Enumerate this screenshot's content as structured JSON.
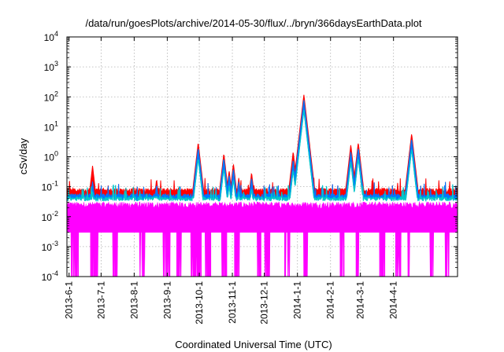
{
  "chart_data": {
    "type": "line",
    "title": "/data/run/goesPlots/archive/2014-05-30/flux/../bryn/366daysEarthData.plot",
    "xlabel": "Coordinated Universal Time (UTC)",
    "ylabel": "cSv/day",
    "yscale": "log",
    "ylim": [
      0.0001,
      10000
    ],
    "yticks": [
      {
        "value": 0.0001,
        "base": "10",
        "exp": "-4"
      },
      {
        "value": 0.001,
        "base": "10",
        "exp": "-3"
      },
      {
        "value": 0.01,
        "base": "10",
        "exp": "-2"
      },
      {
        "value": 0.1,
        "base": "10",
        "exp": "-1"
      },
      {
        "value": 1,
        "base": "10",
        "exp": "0"
      },
      {
        "value": 10,
        "base": "10",
        "exp": "1"
      },
      {
        "value": 100,
        "base": "10",
        "exp": "2"
      },
      {
        "value": 1000,
        "base": "10",
        "exp": "3"
      },
      {
        "value": 10000,
        "base": "10",
        "exp": "4"
      }
    ],
    "xlim": [
      "2013-05-30",
      "2014-05-31"
    ],
    "xticks": [
      "2013-6-1",
      "2013-7-1",
      "2013-8-1",
      "2013-9-1",
      "2013-10-1",
      "2013-11-1",
      "2013-12-1",
      "2014-1-1",
      "2014-2-1",
      "2014-3-1",
      "2014-4-1"
    ],
    "grid": true,
    "legend": "none",
    "series_colors": [
      "#ff0000",
      "#00c8c8",
      "#0078ff",
      "#ff00ff"
    ],
    "baseline": {
      "red": 0.075,
      "blue": 0.05,
      "cyan": 0.04,
      "magenta_top": 0.025,
      "magenta_floor": 0.003
    },
    "peaks": [
      {
        "date": "2013-06-23",
        "red": 0.5,
        "blue": 0.15
      },
      {
        "date": "2013-08-22",
        "red": 0.18,
        "blue": 0.12
      },
      {
        "date": "2013-09-30",
        "red": 3.0,
        "blue": 2.0
      },
      {
        "date": "2013-10-24",
        "red": 1.3,
        "blue": 0.9
      },
      {
        "date": "2013-10-29",
        "red": 0.35,
        "blue": 0.25
      },
      {
        "date": "2013-11-02",
        "red": 0.6,
        "blue": 0.4
      },
      {
        "date": "2013-11-07",
        "red": 0.2,
        "blue": 0.15
      },
      {
        "date": "2013-11-19",
        "red": 0.3,
        "blue": 0.2
      },
      {
        "date": "2013-12-28",
        "red": 1.5,
        "blue": 0.8
      },
      {
        "date": "2014-01-07",
        "red": 120,
        "blue": 80
      },
      {
        "date": "2014-02-20",
        "red": 2.5,
        "blue": 1.5
      },
      {
        "date": "2014-02-27",
        "red": 3.0,
        "blue": 2.0
      },
      {
        "date": "2014-04-18",
        "red": 6.0,
        "blue": 4.0
      }
    ],
    "magenta_dropouts": [
      {
        "from": "2013-06-03",
        "to": "2013-06-10"
      },
      {
        "from": "2013-06-21",
        "to": "2013-06-28"
      },
      {
        "from": "2013-07-12",
        "to": "2013-07-17"
      },
      {
        "from": "2013-08-06",
        "to": "2013-08-12"
      },
      {
        "from": "2013-08-28",
        "to": "2013-09-04"
      },
      {
        "from": "2013-09-10",
        "to": "2013-09-14"
      },
      {
        "from": "2013-09-23",
        "to": "2013-10-03"
      },
      {
        "from": "2013-10-06",
        "to": "2013-10-12"
      },
      {
        "from": "2013-10-22",
        "to": "2013-10-28"
      },
      {
        "from": "2013-11-03",
        "to": "2013-11-08"
      },
      {
        "from": "2013-11-24",
        "to": "2013-11-28"
      },
      {
        "from": "2013-12-01",
        "to": "2013-12-06"
      },
      {
        "from": "2013-12-20",
        "to": "2013-12-25"
      },
      {
        "from": "2014-01-07",
        "to": "2014-01-11"
      },
      {
        "from": "2014-02-10",
        "to": "2014-02-14"
      },
      {
        "from": "2014-02-25",
        "to": "2014-02-28"
      },
      {
        "from": "2014-03-19",
        "to": "2014-03-24"
      },
      {
        "from": "2014-04-03",
        "to": "2014-04-08"
      },
      {
        "from": "2014-04-14",
        "to": "2014-04-16"
      },
      {
        "from": "2014-05-05",
        "to": "2014-05-09"
      },
      {
        "from": "2014-05-19",
        "to": "2014-05-23"
      }
    ]
  }
}
